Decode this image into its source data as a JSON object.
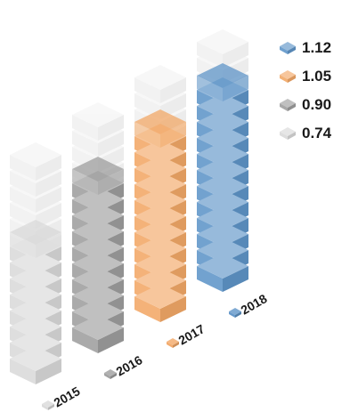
{
  "chart_data": {
    "type": "bar",
    "style": "isometric stacked blocks",
    "categories": [
      "2015",
      "2016",
      "2017",
      "2018"
    ],
    "values": [
      0.74,
      0.9,
      1.05,
      1.12
    ],
    "colors": [
      "#d9d9d9",
      "#9e9e9e",
      "#f2a867",
      "#5f95c8"
    ],
    "legend": {
      "placement": "right",
      "entries": [
        {
          "label": "1.12",
          "color": "#5f95c8"
        },
        {
          "label": "1.05",
          "color": "#f2a867"
        },
        {
          "label": "0.90",
          "color": "#9e9e9e"
        },
        {
          "label": "0.74",
          "color": "#d9d9d9"
        }
      ]
    },
    "scale_max": 1.12,
    "grid": false
  }
}
